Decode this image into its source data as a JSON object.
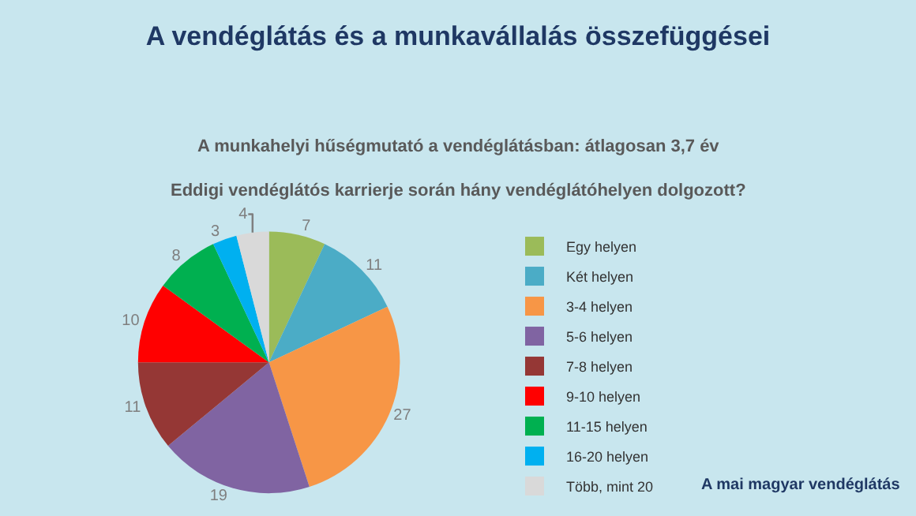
{
  "chart_data": {
    "type": "pie",
    "title": "A vendéglátás és a munkavállalás összefüggései",
    "subtitle": "A munkahelyi hűségmutató a vendéglátásban: átlagosan 3,7 év\nEddigi vendéglátós karrierje során hány vendéglátóhelyen dolgozott?",
    "categories": [
      "Egy helyen",
      "Két helyen",
      "3-4 helyen",
      "5-6 helyen",
      "7-8 helyen",
      "9-10 helyen",
      "11-15 helyen",
      "16-20 helyen",
      "Több, mint 20"
    ],
    "values": [
      7,
      11,
      27,
      19,
      11,
      10,
      8,
      3,
      4
    ],
    "colors": [
      "#9bbb59",
      "#4bacc6",
      "#f79646",
      "#8064a2",
      "#953735",
      "#ff0000",
      "#00b050",
      "#00b0f0",
      "#d9d9d9"
    ],
    "data_labels": true,
    "legend": "right",
    "annotations": [
      "A mai magyar vendéglátás"
    ]
  }
}
